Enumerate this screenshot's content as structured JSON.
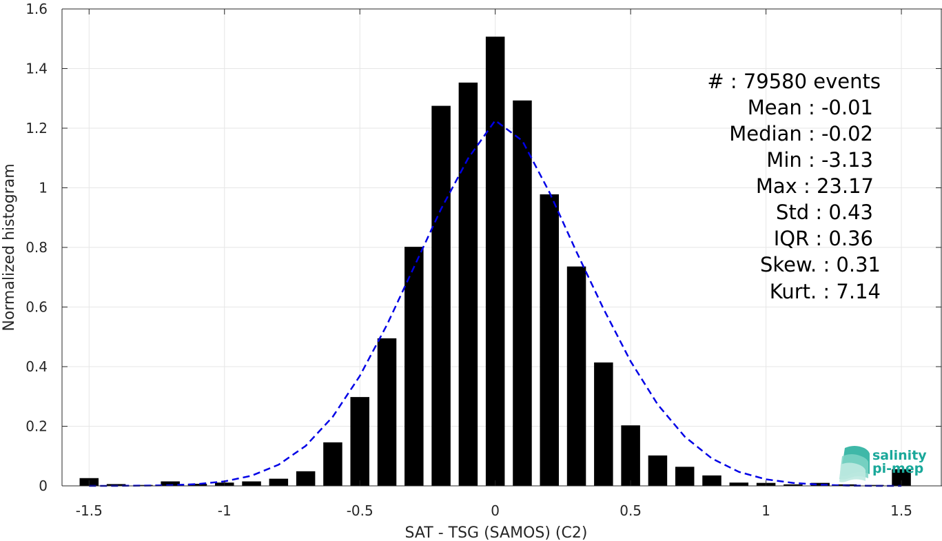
{
  "chart_data": {
    "type": "bar",
    "xlabel": "SAT - TSG (SAMOS) (C2)",
    "ylabel": "Normalized histogram",
    "xlim": [
      -1.6,
      1.65
    ],
    "ylim": [
      0,
      1.6
    ],
    "xticks": [
      -1.5,
      -1,
      -0.5,
      0,
      0.5,
      1,
      1.5
    ],
    "xtick_labels": [
      "-1.5",
      "-1",
      "-0.5",
      "0",
      "0.5",
      "1",
      "1.5"
    ],
    "yticks": [
      0,
      0.2,
      0.4,
      0.6,
      0.8,
      1,
      1.2,
      1.4,
      1.6
    ],
    "ytick_labels": [
      "0",
      "0.2",
      "0.4",
      "0.6",
      "0.8",
      "1",
      "1.2",
      "1.4",
      "1.6"
    ],
    "grid": true,
    "bar_width": 0.07,
    "bar_color": "#000000",
    "bars": {
      "x": [
        -1.5,
        -1.4,
        -1.3,
        -1.2,
        -1.1,
        -1.0,
        -0.9,
        -0.8,
        -0.7,
        -0.6,
        -0.5,
        -0.4,
        -0.3,
        -0.2,
        -0.1,
        0.0,
        0.1,
        0.2,
        0.3,
        0.4,
        0.5,
        0.6,
        0.7,
        0.8,
        0.9,
        1.0,
        1.1,
        1.2,
        1.3,
        1.4,
        1.5
      ],
      "values": [
        0.026,
        0.006,
        0.003,
        0.015,
        0.007,
        0.011,
        0.015,
        0.024,
        0.049,
        0.146,
        0.298,
        0.495,
        0.802,
        1.275,
        1.353,
        1.507,
        1.293,
        0.978,
        0.736,
        0.414,
        0.203,
        0.102,
        0.064,
        0.035,
        0.011,
        0.01,
        0.005,
        0.01,
        0.005,
        0.003,
        0.056
      ]
    },
    "fit_curve": {
      "style": "dashed",
      "color": "#0000e6",
      "x": [
        -1.5,
        -1.4,
        -1.3,
        -1.2,
        -1.1,
        -1.0,
        -0.9,
        -0.8,
        -0.7,
        -0.6,
        -0.5,
        -0.4,
        -0.3,
        -0.2,
        -0.1,
        0.0,
        0.1,
        0.2,
        0.3,
        0.4,
        0.5,
        0.6,
        0.7,
        0.8,
        0.9,
        1.0,
        1.1,
        1.2,
        1.3,
        1.4,
        1.5
      ],
      "y": [
        0.0,
        0.0,
        0.001,
        0.002,
        0.006,
        0.015,
        0.034,
        0.071,
        0.134,
        0.232,
        0.369,
        0.54,
        0.734,
        0.929,
        1.099,
        1.226,
        1.158,
        0.985,
        0.785,
        0.594,
        0.418,
        0.273,
        0.165,
        0.092,
        0.047,
        0.022,
        0.01,
        0.004,
        0.001,
        0.0,
        0.0
      ]
    },
    "stats": [
      {
        "label": "#  : 79580 events"
      },
      {
        "label": "Mean : -0.01"
      },
      {
        "label": "Median : -0.02"
      },
      {
        "label": "Min : -3.13"
      },
      {
        "label": "Max : 23.17"
      },
      {
        "label": "Std : 0.43"
      },
      {
        "label": "IQR : 0.36"
      },
      {
        "label": "Skew. : 0.31"
      },
      {
        "label": "Kurt. : 7.14"
      }
    ]
  },
  "logo": {
    "line1": "salinity",
    "line2": "pi-mep",
    "color": "#1aa89a"
  }
}
